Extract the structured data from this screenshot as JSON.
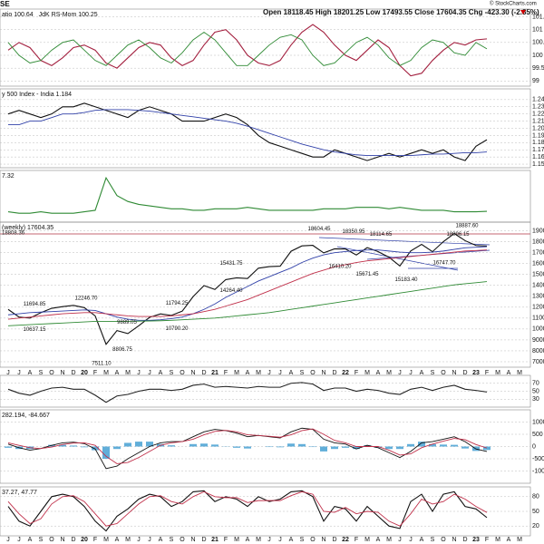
{
  "header": {
    "symbol": "SE",
    "ohlc": "Open 18118.45 High 18201.25 Low 17493.55 Close 17604.35 Chg -423.30 (-2.35%)",
    "credit": "© StockCharts.com"
  },
  "chart_data": [
    {
      "type": "line",
      "ylim": [
        98.8,
        101.8
      ],
      "yticks": [
        99,
        99.5,
        100,
        100.5,
        101,
        101.5
      ],
      "series": [
        {
          "name": "atio 100.64",
          "color": "#a3203f",
          "values": [
            100.2,
            100.5,
            100.3,
            99.8,
            99.6,
            99.9,
            100.3,
            100.4,
            100.2,
            99.7,
            99.5,
            99.9,
            100.3,
            100.5,
            100.4,
            99.9,
            99.6,
            99.8,
            100.4,
            100.9,
            101.0,
            100.6,
            100.0,
            99.7,
            99.6,
            99.8,
            100.4,
            100.9,
            101.2,
            100.9,
            100.4,
            100.0,
            99.8,
            100.2,
            100.6,
            100.3,
            99.6,
            99.2,
            99.3,
            99.8,
            100.2,
            100.5,
            100.4,
            100.6,
            100.64,
            null,
            null,
            null
          ]
        },
        {
          "name": "JdK RS-Mom 100.25",
          "color": "#2f8a34",
          "values": [
            100.5,
            100.0,
            99.7,
            99.8,
            100.2,
            100.5,
            100.6,
            100.2,
            99.8,
            99.6,
            100.0,
            100.4,
            100.6,
            100.3,
            99.9,
            99.7,
            100.1,
            100.6,
            100.9,
            100.6,
            100.1,
            99.6,
            99.6,
            100.0,
            100.4,
            100.7,
            100.8,
            100.6,
            100.0,
            99.6,
            99.7,
            100.1,
            100.5,
            100.7,
            100.4,
            99.9,
            99.6,
            99.8,
            100.3,
            100.6,
            100.5,
            100.1,
            100.0,
            100.5,
            100.25,
            null,
            null,
            null
          ]
        }
      ]
    },
    {
      "type": "line",
      "ylim": [
        1.145,
        1.255
      ],
      "yticks": [
        1.15,
        1.16,
        1.17,
        1.18,
        1.19,
        {
          "value": 1.2,
          "label": "1.20"
        },
        1.21,
        1.22,
        1.23,
        1.24
      ],
      "series": [
        {
          "name": "y 500 Index - India 1.184",
          "color": "#111111",
          "values": [
            1.22,
            1.225,
            1.22,
            1.215,
            1.22,
            1.23,
            1.23,
            1.235,
            1.23,
            1.225,
            1.22,
            1.215,
            1.225,
            1.23,
            1.225,
            1.22,
            1.21,
            1.21,
            1.21,
            1.215,
            1.22,
            1.215,
            1.205,
            1.19,
            1.18,
            1.175,
            1.17,
            1.165,
            1.16,
            1.16,
            1.17,
            1.165,
            1.16,
            1.155,
            1.16,
            1.165,
            1.16,
            1.165,
            1.17,
            1.165,
            1.17,
            1.16,
            1.155,
            1.175,
            1.184,
            null,
            null,
            null
          ]
        },
        {
          "color": "#3040a8",
          "values": [
            1.205,
            1.205,
            1.21,
            1.21,
            1.215,
            1.22,
            1.22,
            1.222,
            1.225,
            1.226,
            1.226,
            1.226,
            1.225,
            1.224,
            1.222,
            1.22,
            1.218,
            1.216,
            1.214,
            1.212,
            1.21,
            1.207,
            1.203,
            1.198,
            1.193,
            1.188,
            1.183,
            1.178,
            1.174,
            1.17,
            1.167,
            1.165,
            1.163,
            1.162,
            1.162,
            1.162,
            1.162,
            1.162,
            1.163,
            1.164,
            1.164,
            1.165,
            1.166,
            1.166,
            1.167,
            null,
            null,
            null
          ]
        }
      ]
    },
    {
      "type": "line",
      "ylim": [
        0,
        35
      ],
      "series": [
        {
          "name": "7.32",
          "color": "#2f8a34",
          "values": [
            7,
            6,
            6,
            7,
            6,
            6,
            6,
            7,
            8,
            30,
            18,
            14,
            12,
            11,
            10,
            9,
            9,
            8,
            8,
            9,
            9,
            9,
            10,
            9,
            8,
            8,
            8,
            8,
            8,
            9,
            9,
            9,
            10,
            10,
            10,
            9,
            10,
            9,
            8,
            8,
            8,
            7,
            7,
            7,
            7.32,
            null,
            null,
            null
          ]
        }
      ]
    },
    {
      "type": "line",
      "ylim": [
        6500,
        19800
      ],
      "yticks": [
        7000,
        8000,
        9000,
        10000,
        11000,
        12000,
        13000,
        14000,
        15000,
        16000,
        17000,
        18000,
        19000
      ],
      "categories": [
        "J",
        "J",
        "A",
        "S",
        "O",
        "N",
        "D",
        "20",
        "F",
        "M",
        "A",
        "M",
        "J",
        "J",
        "A",
        "S",
        "O",
        "N",
        "D",
        "21",
        "F",
        "M",
        "A",
        "M",
        "J",
        "J",
        "A",
        "S",
        "O",
        "N",
        "D",
        "22",
        "F",
        "M",
        "A",
        "M",
        "J",
        "J",
        "A",
        "S",
        "O",
        "N",
        "D",
        "23",
        "F",
        "M",
        "A",
        "M"
      ],
      "series": [
        {
          "name": "(weekly) 17604.35",
          "color": "#111111",
          "values": [
            11800,
            11100,
            11000,
            11500,
            11900,
            12050,
            12170,
            11960,
            11200,
            8600,
            9860,
            9580,
            10300,
            11070,
            11390,
            11250,
            11640,
            12970,
            13980,
            13630,
            14530,
            14690,
            14630,
            15580,
            15720,
            15760,
            17130,
            17620,
            17670,
            16980,
            17350,
            17340,
            16790,
            17460,
            17100,
            16580,
            15780,
            17160,
            17760,
            17090,
            18010,
            18760,
            18100,
            17660,
            17604.35,
            null,
            null,
            null
          ]
        },
        {
          "color": "#3040a8",
          "values": [
            11300,
            11400,
            11500,
            11550,
            11600,
            11650,
            11700,
            11750,
            11700,
            11400,
            11100,
            10900,
            10800,
            10800,
            10850,
            10950,
            11100,
            11400,
            11800,
            12300,
            12900,
            13400,
            13900,
            14400,
            14800,
            15200,
            15600,
            16100,
            16500,
            16800,
            17000,
            17100,
            17200,
            17250,
            17250,
            17150,
            17050,
            17000,
            17000,
            17050,
            17150,
            17300,
            17450,
            17500,
            17550,
            null,
            null,
            null
          ]
        },
        {
          "color": "#c0304a",
          "values": [
            10900,
            11000,
            11100,
            11200,
            11300,
            11400,
            11450,
            11500,
            11500,
            11400,
            11300,
            11200,
            11150,
            11150,
            11150,
            11200,
            11300,
            11400,
            11600,
            11800,
            12100,
            12400,
            12700,
            13100,
            13500,
            13900,
            14300,
            14700,
            15100,
            15400,
            15700,
            15900,
            16100,
            16250,
            16350,
            16450,
            16550,
            16650,
            16750,
            16850,
            16950,
            17050,
            17150,
            17200,
            17250,
            null,
            null,
            null
          ]
        },
        {
          "color": "#2f8a34",
          "values": [
            10300,
            10350,
            10400,
            10450,
            10500,
            10550,
            10600,
            10650,
            10700,
            10700,
            10700,
            10700,
            10720,
            10740,
            10760,
            10800,
            10850,
            10900,
            10950,
            11000,
            11100,
            11200,
            11300,
            11400,
            11500,
            11650,
            11800,
            11950,
            12100,
            12250,
            12400,
            12550,
            12700,
            12850,
            13000,
            13150,
            13300,
            13450,
            13600,
            13750,
            13900,
            14050,
            14150,
            14250,
            14350,
            null,
            null,
            null
          ]
        }
      ],
      "annotations": [
        {
          "value": 11694.85,
          "label": "11694.85"
        },
        {
          "value": 12246.7,
          "label": "12246.70"
        },
        {
          "value": 10637.15,
          "label": "10637.15"
        },
        {
          "value": 7511.1,
          "label": "7511.10"
        },
        {
          "value": 8806.75,
          "label": "8806.75"
        },
        {
          "value": 9889.05,
          "label": "9889.05"
        },
        {
          "value": 10790.2,
          "label": "10790.20"
        },
        {
          "value": 11794.25,
          "label": "11794.25"
        },
        {
          "value": 15431.75,
          "label": "15431.75"
        },
        {
          "value": 14264.4,
          "label": "14264.40"
        },
        {
          "value": 18604.45,
          "label": "18604.45"
        },
        {
          "value": 18350.95,
          "label": "18350.95"
        },
        {
          "value": 18114.65,
          "label": "18114.65"
        },
        {
          "value": 16410.2,
          "label": "16410.20"
        },
        {
          "value": 15671.45,
          "label": "15671.45"
        },
        {
          "value": 15183.4,
          "label": "15183.40"
        },
        {
          "value": 16747.7,
          "label": "16747.70"
        },
        {
          "value": 18096.15,
          "label": "18096.15"
        },
        {
          "value": 18887.6,
          "label": "18887.60"
        },
        {
          "value": 18808.36,
          "label": "18808.36"
        }
      ]
    },
    {
      "type": "line",
      "ylim": [
        10,
        90
      ],
      "yticks": [
        30,
        50,
        70
      ],
      "series": [
        {
          "color": "#222222",
          "values": [
            55,
            45,
            40,
            50,
            58,
            60,
            55,
            55,
            40,
            22,
            38,
            42,
            50,
            55,
            55,
            52,
            55,
            65,
            68,
            60,
            62,
            60,
            58,
            62,
            60,
            60,
            70,
            72,
            68,
            52,
            58,
            58,
            50,
            55,
            52,
            45,
            42,
            55,
            60,
            52,
            60,
            65,
            55,
            52,
            48,
            null,
            null,
            null
          ]
        }
      ]
    },
    {
      "type": "line",
      "legend": "282.194, -84.667",
      "ylim": [
        -1500,
        1500
      ],
      "yticks": [
        -1000,
        -500,
        0,
        500,
        1000
      ],
      "series": [
        {
          "type": "bar",
          "color": "#3a9ad0",
          "values": [
            -50,
            -100,
            -100,
            0,
            70,
            70,
            40,
            -30,
            -150,
            -500,
            -100,
            150,
            200,
            200,
            100,
            50,
            0,
            100,
            120,
            80,
            -10,
            -50,
            -80,
            0,
            -20,
            -30,
            120,
            100,
            -20,
            -200,
            -100,
            -50,
            -100,
            50,
            -50,
            -100,
            -100,
            100,
            200,
            100,
            80,
            70,
            -80,
            -180,
            -140,
            null,
            null,
            null
          ]
        },
        {
          "color": "#111111",
          "values": [
            100,
            -50,
            -150,
            -80,
            50,
            150,
            180,
            120,
            -100,
            -900,
            -800,
            -500,
            -250,
            0,
            150,
            200,
            200,
            400,
            600,
            700,
            650,
            550,
            400,
            450,
            400,
            350,
            600,
            750,
            700,
            300,
            150,
            100,
            -100,
            50,
            -50,
            -250,
            -450,
            -200,
            150,
            200,
            300,
            400,
            200,
            -100,
            -200,
            null,
            null,
            null
          ]
        },
        {
          "color": "#c0304a",
          "values": [
            150,
            50,
            -50,
            -80,
            -20,
            80,
            140,
            150,
            50,
            -400,
            -700,
            -650,
            -450,
            -200,
            50,
            150,
            200,
            300,
            480,
            620,
            660,
            600,
            480,
            450,
            420,
            380,
            480,
            650,
            720,
            500,
            250,
            150,
            0,
            0,
            0,
            -150,
            -350,
            -300,
            -50,
            100,
            220,
            330,
            280,
            80,
            -60,
            null,
            null,
            null
          ]
        }
      ]
    },
    {
      "type": "line",
      "legend": "37.27, 47.77",
      "ylim": [
        0,
        100
      ],
      "yticks": [
        20,
        50,
        80
      ],
      "series": [
        {
          "color": "#111111",
          "values": [
            60,
            30,
            20,
            50,
            80,
            85,
            80,
            60,
            30,
            10,
            40,
            55,
            75,
            85,
            80,
            60,
            70,
            90,
            92,
            70,
            80,
            75,
            60,
            80,
            70,
            75,
            90,
            92,
            80,
            30,
            60,
            55,
            30,
            60,
            40,
            20,
            15,
            70,
            85,
            50,
            85,
            90,
            60,
            55,
            37.27,
            null,
            null,
            null
          ]
        },
        {
          "color": "#c0304a",
          "values": [
            70,
            45,
            25,
            35,
            65,
            80,
            82,
            70,
            45,
            20,
            25,
            45,
            65,
            80,
            82,
            70,
            65,
            80,
            90,
            80,
            78,
            78,
            68,
            72,
            72,
            72,
            82,
            90,
            85,
            50,
            48,
            58,
            45,
            50,
            48,
            30,
            20,
            45,
            75,
            65,
            70,
            85,
            75,
            60,
            47.77,
            null,
            null,
            null
          ]
        }
      ]
    }
  ]
}
